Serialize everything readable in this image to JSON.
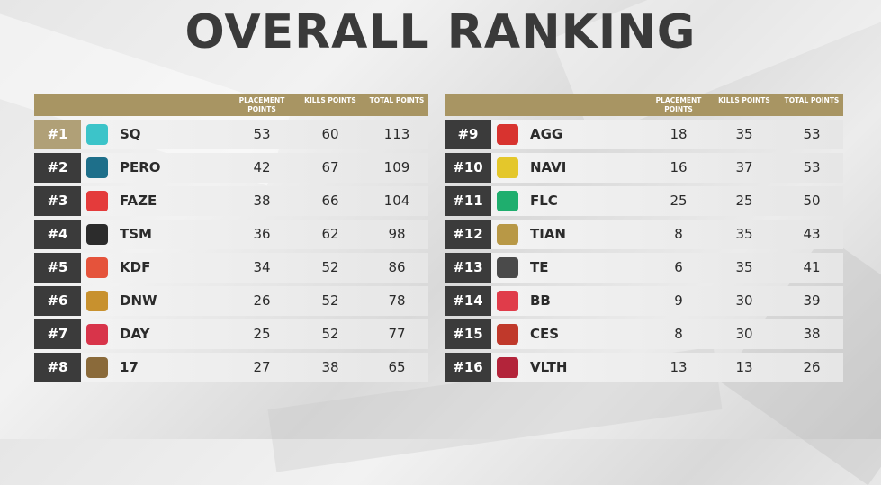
{
  "title": "OVERALL RANKING",
  "columns": {
    "placement": "PLACEMENT POINTS",
    "kills": "KILLS POINTS",
    "total": "TOTAL POINTS"
  },
  "colors": {
    "header_gold": "#a89563",
    "rank_dark": "#3b3b3b",
    "rank_first": "#b0a077"
  },
  "left": [
    {
      "rank": "#1",
      "team": "SQ",
      "placement": 53,
      "kills": 60,
      "total": 113,
      "logo_icon": "sq-logo-icon",
      "logo_color": "#3cc4c9"
    },
    {
      "rank": "#2",
      "team": "PERO",
      "placement": 42,
      "kills": 67,
      "total": 109,
      "logo_icon": "pero-logo-icon",
      "logo_color": "#1e6f8a"
    },
    {
      "rank": "#3",
      "team": "FAZE",
      "placement": 38,
      "kills": 66,
      "total": 104,
      "logo_icon": "faze-logo-icon",
      "logo_color": "#e43b3b"
    },
    {
      "rank": "#4",
      "team": "TSM",
      "placement": 36,
      "kills": 62,
      "total": 98,
      "logo_icon": "tsm-logo-icon",
      "logo_color": "#2c2c2c"
    },
    {
      "rank": "#5",
      "team": "KDF",
      "placement": 34,
      "kills": 52,
      "total": 86,
      "logo_icon": "kdf-logo-icon",
      "logo_color": "#e5533b"
    },
    {
      "rank": "#6",
      "team": "DNW",
      "placement": 26,
      "kills": 52,
      "total": 78,
      "logo_icon": "dnw-logo-icon",
      "logo_color": "#c8912e"
    },
    {
      "rank": "#7",
      "team": "DAY",
      "placement": 25,
      "kills": 52,
      "total": 77,
      "logo_icon": "day-logo-icon",
      "logo_color": "#d8344a"
    },
    {
      "rank": "#8",
      "team": "17",
      "placement": 27,
      "kills": 38,
      "total": 65,
      "logo_icon": "17-logo-icon",
      "logo_color": "#8a6a3a"
    }
  ],
  "right": [
    {
      "rank": "#9",
      "team": "AGG",
      "placement": 18,
      "kills": 35,
      "total": 53,
      "logo_icon": "agg-logo-icon",
      "logo_color": "#d8332f"
    },
    {
      "rank": "#10",
      "team": "NAVI",
      "placement": 16,
      "kills": 37,
      "total": 53,
      "logo_icon": "navi-logo-icon",
      "logo_color": "#e4c72b"
    },
    {
      "rank": "#11",
      "team": "FLC",
      "placement": 25,
      "kills": 25,
      "total": 50,
      "logo_icon": "flc-logo-icon",
      "logo_color": "#1fae6e"
    },
    {
      "rank": "#12",
      "team": "TIAN",
      "placement": 8,
      "kills": 35,
      "total": 43,
      "logo_icon": "tian-logo-icon",
      "logo_color": "#b89846"
    },
    {
      "rank": "#13",
      "team": "TE",
      "placement": 6,
      "kills": 35,
      "total": 41,
      "logo_icon": "te-logo-icon",
      "logo_color": "#4a4a4a"
    },
    {
      "rank": "#14",
      "team": "BB",
      "placement": 9,
      "kills": 30,
      "total": 39,
      "logo_icon": "bb-logo-icon",
      "logo_color": "#e03c4a"
    },
    {
      "rank": "#15",
      "team": "CES",
      "placement": 8,
      "kills": 30,
      "total": 38,
      "logo_icon": "ces-logo-icon",
      "logo_color": "#c0392b"
    },
    {
      "rank": "#16",
      "team": "VLTH",
      "placement": 13,
      "kills": 13,
      "total": 26,
      "logo_icon": "vlth-logo-icon",
      "logo_color": "#b3243a"
    }
  ]
}
